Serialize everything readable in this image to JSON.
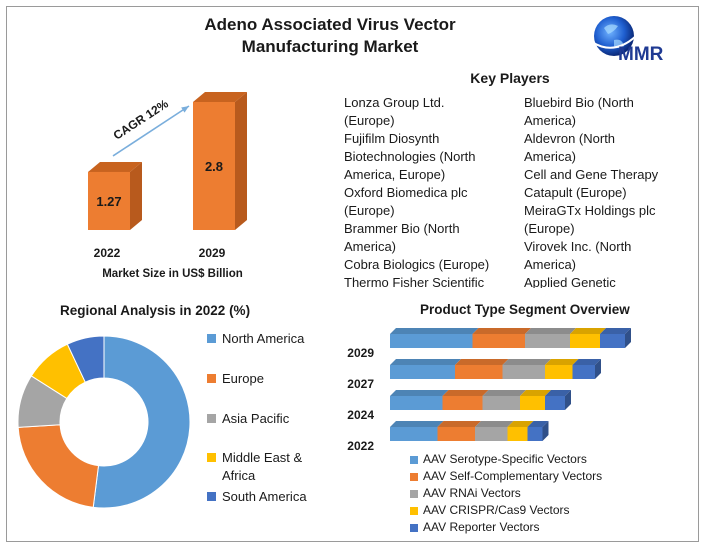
{
  "title_line1": "Adeno Associated Virus Vector",
  "title_line2": "Manufacturing Market",
  "logo_text": "MMR",
  "key_players": {
    "title": "Key Players",
    "col1": [
      "Lonza Group Ltd.",
      "(Europe)",
      "Fujifilm Diosynth",
      "Biotechnologies (North",
      "America, Europe)",
      "Oxford Biomedica plc",
      "(Europe)",
      "Brammer Bio (North",
      "America)",
      "Cobra Biologics (Europe)",
      "Thermo Fisher Scientific"
    ],
    "col2": [
      "Bluebird Bio (North",
      "America)",
      "Aldevron (North",
      "America)",
      "Cell and Gene Therapy",
      "Catapult (Europe)",
      "MeiraGTx Holdings plc",
      "(Europe)",
      "Virovek Inc. (North",
      "America)",
      "Applied Genetic"
    ]
  },
  "colors": {
    "orange": "#ED7D31",
    "blue": "#5B9BD5",
    "gray": "#A5A5A5",
    "yellow": "#FFC000",
    "darkblue": "#4472C4",
    "arrow": "#7aaedc"
  },
  "chart_data": [
    {
      "type": "bar",
      "categories": [
        "2022",
        "2029"
      ],
      "values": [
        1.27,
        2.8
      ],
      "data_labels": [
        "1.27",
        "2.8"
      ],
      "annotation": "CAGR 12%",
      "xlabel": "Market Size in US$ Billion"
    },
    {
      "type": "pie",
      "title": "Regional Analysis in 2022 (%)",
      "donut": true,
      "labels": [
        "North America",
        "Europe",
        "Asia Pacific",
        "Middle East & Africa",
        "South America"
      ],
      "legend_lines": [
        [
          "North America"
        ],
        [
          "Europe"
        ],
        [
          "Asia Pacific"
        ],
        [
          "Middle East &",
          "Africa"
        ],
        [
          "South America"
        ]
      ],
      "values": [
        52,
        22,
        10,
        9,
        7
      ],
      "legend": "right"
    },
    {
      "type": "bar",
      "orientation": "horizontal",
      "stacked": true,
      "title": "Product Type Segment Overview",
      "categories": [
        "2029",
        "2027",
        "2024",
        "2022"
      ],
      "series": [
        {
          "name": "AAV Serotype-Specific Vectors",
          "values": [
            33,
            26,
            21,
            19
          ]
        },
        {
          "name": "AAV Self-Complementary Vectors",
          "values": [
            21,
            19,
            16,
            15
          ]
        },
        {
          "name": "AAV RNAi Vectors",
          "values": [
            18,
            17,
            15,
            13
          ]
        },
        {
          "name": "AAV CRISPR/Cas9 Vectors",
          "values": [
            12,
            11,
            10,
            8
          ]
        },
        {
          "name": "AAV Reporter Vectors",
          "values": [
            10,
            9,
            8,
            6
          ]
        }
      ],
      "legend": "bottom"
    }
  ]
}
